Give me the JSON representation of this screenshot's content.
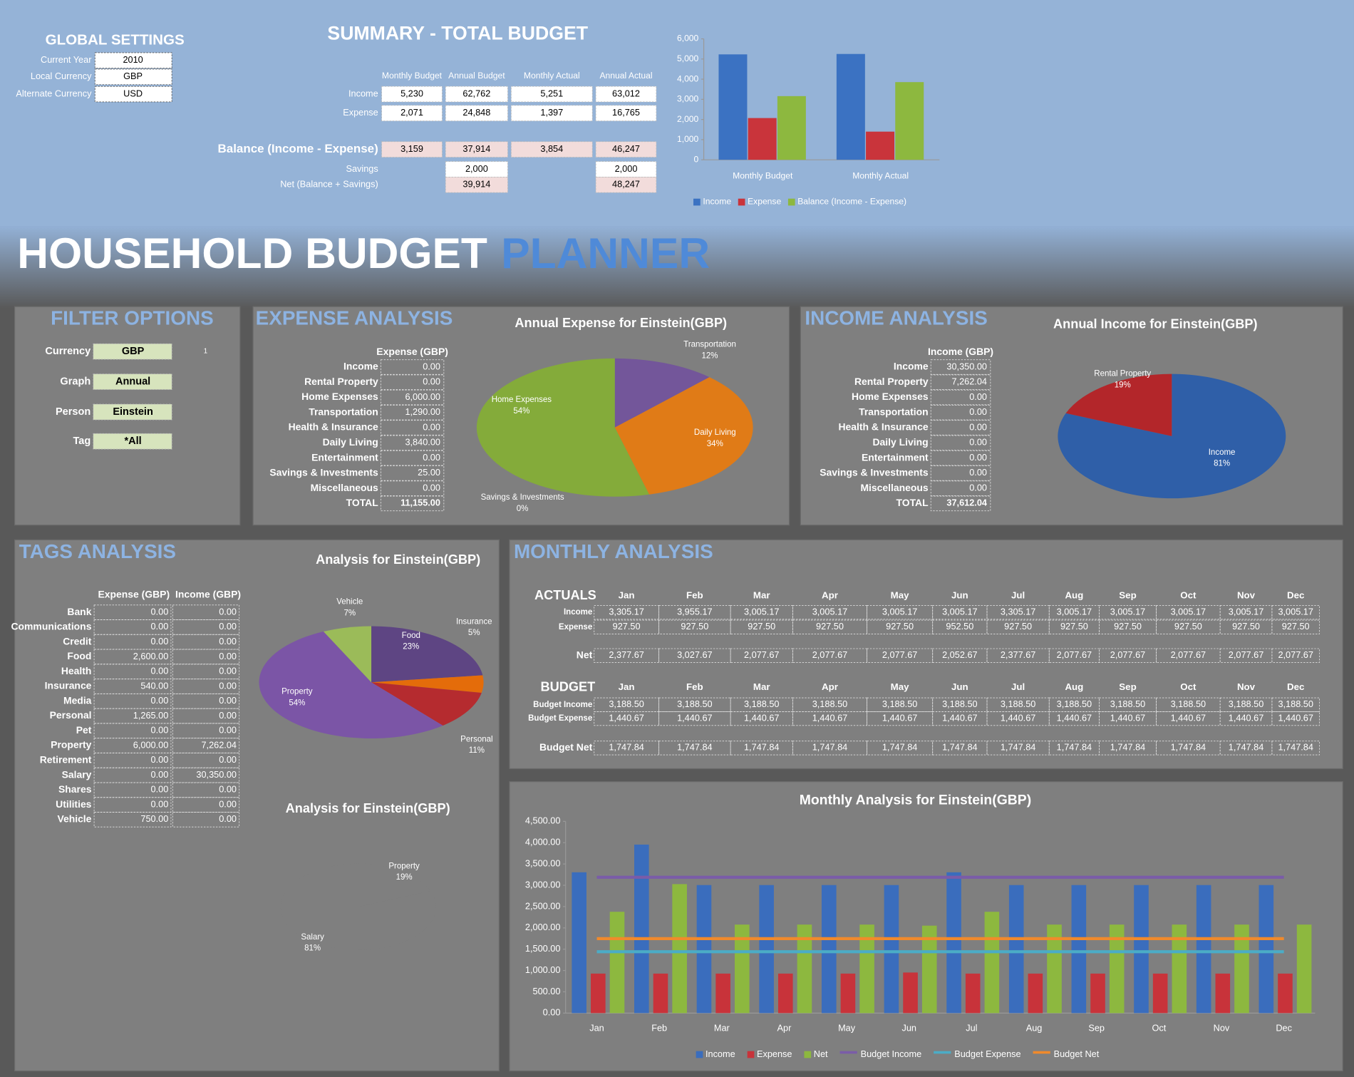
{
  "global_settings": {
    "title": "GLOBAL SETTINGS",
    "rows": [
      {
        "label": "Current Year",
        "value": "2010"
      },
      {
        "label": "Local Currency",
        "value": "GBP"
      },
      {
        "label": "Alternate Currency",
        "value": "USD"
      }
    ]
  },
  "summary": {
    "title": "SUMMARY - TOTAL BUDGET",
    "columns": [
      "Monthly Budget",
      "Annual Budget",
      "Monthly Actual",
      "Annual Actual"
    ],
    "rows": [
      {
        "label": "Income",
        "cells": [
          "5,230",
          "62,762",
          "5,251",
          "63,012"
        ]
      },
      {
        "label": "Expense",
        "cells": [
          "2,071",
          "24,848",
          "1,397",
          "16,765"
        ]
      },
      {
        "label": "Balance (Income - Expense)",
        "cells": [
          "3,159",
          "37,914",
          "3,854",
          "46,247"
        ]
      },
      {
        "label": "Savings",
        "cells": [
          null,
          "2,000",
          null,
          "2,000"
        ]
      },
      {
        "label": "Net (Balance + Savings)",
        "cells": [
          null,
          "39,914",
          null,
          "48,247"
        ]
      }
    ]
  },
  "banner": {
    "title": "HOUSEHOLD BUDGET",
    "highlight": "PLANNER"
  },
  "filter_options": {
    "title": "FILTER OPTIONS",
    "rows": [
      {
        "label": "Currency",
        "value": "GBP"
      },
      {
        "label": "Graph",
        "value": "Annual"
      },
      {
        "label": "Person",
        "value": "Einstein"
      },
      {
        "label": "Tag",
        "value": "*All"
      }
    ],
    "marker": "1"
  },
  "expense_analysis": {
    "title": "EXPENSE ANALYSIS",
    "column": "Expense  (GBP)",
    "rows": [
      {
        "label": "Income",
        "value": "0.00"
      },
      {
        "label": "Rental Property",
        "value": "0.00"
      },
      {
        "label": "Home Expenses",
        "value": "6,000.00"
      },
      {
        "label": "Transportation",
        "value": "1,290.00"
      },
      {
        "label": "Health & Insurance",
        "value": "0.00"
      },
      {
        "label": "Daily Living",
        "value": "3,840.00"
      },
      {
        "label": "Entertainment",
        "value": "0.00"
      },
      {
        "label": "Savings & Investments",
        "value": "25.00"
      },
      {
        "label": "Miscellaneous",
        "value": "0.00"
      },
      {
        "label": "TOTAL",
        "value": "11,155.00"
      }
    ]
  },
  "income_analysis": {
    "title": "INCOME ANALYSIS",
    "column": "Income  (GBP)",
    "rows": [
      {
        "label": "Income",
        "value": "30,350.00"
      },
      {
        "label": "Rental Property",
        "value": "7,262.04"
      },
      {
        "label": "Home Expenses",
        "value": "0.00"
      },
      {
        "label": "Transportation",
        "value": "0.00"
      },
      {
        "label": "Health & Insurance",
        "value": "0.00"
      },
      {
        "label": "Daily Living",
        "value": "0.00"
      },
      {
        "label": "Entertainment",
        "value": "0.00"
      },
      {
        "label": "Savings & Investments",
        "value": "0.00"
      },
      {
        "label": "Miscellaneous",
        "value": "0.00"
      },
      {
        "label": "TOTAL",
        "value": "37,612.04"
      }
    ]
  },
  "tags_analysis": {
    "title": "TAGS ANALYSIS",
    "columns": [
      "Expense  (GBP)",
      "Income  (GBP)"
    ],
    "rows": [
      {
        "label": "Bank",
        "cells": [
          "0.00",
          "0.00"
        ]
      },
      {
        "label": "Communications",
        "cells": [
          "0.00",
          "0.00"
        ]
      },
      {
        "label": "Credit",
        "cells": [
          "0.00",
          "0.00"
        ]
      },
      {
        "label": "Food",
        "cells": [
          "2,600.00",
          "0.00"
        ]
      },
      {
        "label": "Health",
        "cells": [
          "0.00",
          "0.00"
        ]
      },
      {
        "label": "Insurance",
        "cells": [
          "540.00",
          "0.00"
        ]
      },
      {
        "label": "Media",
        "cells": [
          "0.00",
          "0.00"
        ]
      },
      {
        "label": "Personal",
        "cells": [
          "1,265.00",
          "0.00"
        ]
      },
      {
        "label": "Pet",
        "cells": [
          "0.00",
          "0.00"
        ]
      },
      {
        "label": "Property",
        "cells": [
          "6,000.00",
          "7,262.04"
        ]
      },
      {
        "label": "Retirement",
        "cells": [
          "0.00",
          "0.00"
        ]
      },
      {
        "label": "Salary",
        "cells": [
          "0.00",
          "30,350.00"
        ]
      },
      {
        "label": "Shares",
        "cells": [
          "0.00",
          "0.00"
        ]
      },
      {
        "label": "Utilities",
        "cells": [
          "0.00",
          "0.00"
        ]
      },
      {
        "label": "Vehicle",
        "cells": [
          "750.00",
          "0.00"
        ]
      }
    ]
  },
  "monthly_analysis": {
    "title": "MONTHLY ANALYSIS",
    "months": [
      "Jan",
      "Feb",
      "Mar",
      "Apr",
      "May",
      "Jun",
      "Jul",
      "Aug",
      "Sep",
      "Oct",
      "Nov",
      "Dec"
    ],
    "actuals": {
      "title": "ACTUALS",
      "rows": [
        {
          "label": "Income",
          "cells": [
            "3,305.17",
            "3,955.17",
            "3,005.17",
            "3,005.17",
            "3,005.17",
            "3,005.17",
            "3,305.17",
            "3,005.17",
            "3,005.17",
            "3,005.17",
            "3,005.17",
            "3,005.17"
          ]
        },
        {
          "label": "Expense",
          "cells": [
            "927.50",
            "927.50",
            "927.50",
            "927.50",
            "927.50",
            "952.50",
            "927.50",
            "927.50",
            "927.50",
            "927.50",
            "927.50",
            "927.50"
          ]
        },
        {
          "label": "Net",
          "cells": [
            "2,377.67",
            "3,027.67",
            "2,077.67",
            "2,077.67",
            "2,077.67",
            "2,052.67",
            "2,377.67",
            "2,077.67",
            "2,077.67",
            "2,077.67",
            "2,077.67",
            "2,077.67"
          ]
        }
      ]
    },
    "budget": {
      "title": "BUDGET",
      "rows": [
        {
          "label": "Budget Income",
          "cells": [
            "3,188.50",
            "3,188.50",
            "3,188.50",
            "3,188.50",
            "3,188.50",
            "3,188.50",
            "3,188.50",
            "3,188.50",
            "3,188.50",
            "3,188.50",
            "3,188.50",
            "3,188.50"
          ]
        },
        {
          "label": "Budget Expense",
          "cells": [
            "1,440.67",
            "1,440.67",
            "1,440.67",
            "1,440.67",
            "1,440.67",
            "1,440.67",
            "1,440.67",
            "1,440.67",
            "1,440.67",
            "1,440.67",
            "1,440.67",
            "1,440.67"
          ]
        },
        {
          "label": "Budget Net",
          "cells": [
            "1,747.84",
            "1,747.84",
            "1,747.84",
            "1,747.84",
            "1,747.84",
            "1,747.84",
            "1,747.84",
            "1,747.84",
            "1,747.84",
            "1,747.84",
            "1,747.84",
            "1,747.84"
          ]
        }
      ]
    }
  },
  "chart_data": [
    {
      "type": "bar",
      "categories": [
        "Monthly Budget",
        "Monthly Actual"
      ],
      "series": [
        {
          "name": "Income",
          "color": "#3b72c2",
          "values": [
            5230,
            5251
          ]
        },
        {
          "name": "Expense",
          "color": "#c9343b",
          "values": [
            2071,
            1397
          ]
        },
        {
          "name": "Balance (Income - Expense)",
          "color": "#8db83f",
          "values": [
            3159,
            3854
          ]
        }
      ],
      "ylim": [
        0,
        6000
      ],
      "yticks": [
        0,
        {
          "value": 1000,
          "label": "1,000"
        },
        {
          "value": 2000,
          "label": "2,000"
        },
        {
          "value": 3000,
          "label": "3,000"
        },
        {
          "value": 4000,
          "label": "4,000"
        },
        {
          "value": 5000,
          "label": "5,000"
        },
        {
          "value": 6000,
          "label": "6,000"
        }
      ],
      "grid": false,
      "legend": "bottom"
    },
    {
      "type": "pie",
      "title": "Annual Expense for Einstein(GBP)",
      "categories": [
        "Transportation",
        "Daily Living",
        "Savings & Investments",
        "Home Expenses"
      ],
      "values": [
        12,
        34,
        0,
        54
      ],
      "value_labels": [
        "12%",
        "34%",
        "0%",
        "54%"
      ],
      "colors": [
        "#73569a",
        "#e07b17",
        "#c0504d",
        "#84ab3a"
      ]
    },
    {
      "type": "pie",
      "title": "Annual Income for Einstein(GBP)",
      "categories": [
        "Income",
        "Rental Property"
      ],
      "values": [
        81,
        19
      ],
      "value_labels": [
        "81%",
        "19%"
      ],
      "colors": [
        "#2f5fa8",
        "#b3262a"
      ]
    },
    {
      "type": "pie",
      "title": "Analysis for Einstein(GBP)",
      "categories": [
        "Food",
        "Insurance",
        "Personal",
        "Property",
        "Vehicle"
      ],
      "values": [
        23,
        5,
        11,
        54,
        7
      ],
      "value_labels": [
        "23%",
        "5%",
        "11%",
        "54%",
        "7%"
      ],
      "colors": [
        "#5e4583",
        "#e46c0a",
        "#b52b2f",
        "#7b55a6",
        "#9bbb59"
      ]
    },
    {
      "type": "pie",
      "title": "Analysis for Einstein(GBP)",
      "categories": [
        "Property",
        "Salary"
      ],
      "values": [
        19,
        81
      ],
      "value_labels": [
        "19%",
        "81%"
      ],
      "colors": [
        "#7f7f7f",
        "#7f7f7f"
      ]
    },
    {
      "type": "bar",
      "title": "Monthly Analysis for Einstein(GBP)",
      "categories": [
        "Jan",
        "Feb",
        "Mar",
        "Apr",
        "May",
        "Jun",
        "Jul",
        "Aug",
        "Sep",
        "Oct",
        "Nov",
        "Dec"
      ],
      "series": [
        {
          "name": "Income",
          "color": "#3a6dbd",
          "values": [
            3305.17,
            3955.17,
            3005.17,
            3005.17,
            3005.17,
            3005.17,
            3305.17,
            3005.17,
            3005.17,
            3005.17,
            3005.17,
            3005.17
          ]
        },
        {
          "name": "Expense",
          "color": "#c8333a",
          "values": [
            927.5,
            927.5,
            927.5,
            927.5,
            927.5,
            952.5,
            927.5,
            927.5,
            927.5,
            927.5,
            927.5,
            927.5
          ]
        },
        {
          "name": "Net",
          "color": "#8db83f",
          "values": [
            2377.67,
            3027.67,
            2077.67,
            2077.67,
            2077.67,
            2052.67,
            2377.67,
            2077.67,
            2077.67,
            2077.67,
            2077.67,
            2077.67
          ]
        },
        {
          "name": "Budget Income",
          "color": "#7a5ca8",
          "mark": "line",
          "values": [
            3188.5,
            3188.5,
            3188.5,
            3188.5,
            3188.5,
            3188.5,
            3188.5,
            3188.5,
            3188.5,
            3188.5,
            3188.5,
            3188.5
          ]
        },
        {
          "name": "Budget Expense",
          "color": "#4bacc6",
          "mark": "line",
          "values": [
            1440.67,
            1440.67,
            1440.67,
            1440.67,
            1440.67,
            1440.67,
            1440.67,
            1440.67,
            1440.67,
            1440.67,
            1440.67,
            1440.67
          ]
        },
        {
          "name": "Budget Net",
          "color": "#f08a2c",
          "mark": "line",
          "values": [
            1747.84,
            1747.84,
            1747.84,
            1747.84,
            1747.84,
            1747.84,
            1747.84,
            1747.84,
            1747.84,
            1747.84,
            1747.84,
            1747.84
          ]
        }
      ],
      "ylim": [
        0,
        4500
      ],
      "yticks": [
        {
          "value": 0,
          "label": "0.00"
        },
        {
          "value": 500,
          "label": "500.00"
        },
        {
          "value": 1000,
          "label": "1,000.00"
        },
        {
          "value": 1500,
          "label": "1,500.00"
        },
        {
          "value": 2000,
          "label": "2,000.00"
        },
        {
          "value": 2500,
          "label": "2,500.00"
        },
        {
          "value": 3000,
          "label": "3,000.00"
        },
        {
          "value": 3500,
          "label": "3,500.00"
        },
        {
          "value": 4000,
          "label": "4,000.00"
        },
        {
          "value": 4500,
          "label": "4,500.00"
        }
      ],
      "grid": false,
      "legend": "bottom"
    }
  ]
}
